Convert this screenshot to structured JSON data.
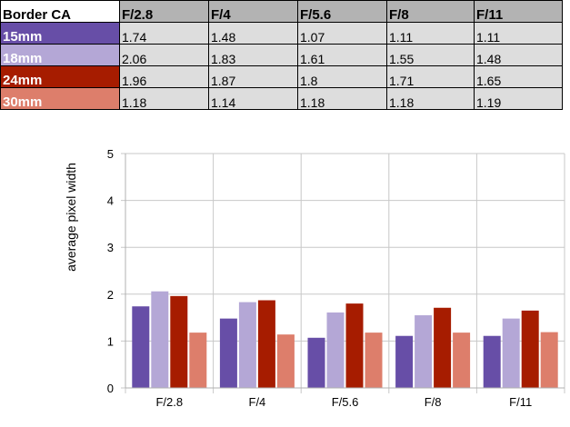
{
  "table": {
    "corner_label": "Border CA",
    "headers": [
      "F/2.8",
      "F/4",
      "F/5.6",
      "F/8",
      "F/11"
    ],
    "rows": [
      {
        "label": "15mm",
        "color": "#674ea7",
        "text_color": "#ffffff",
        "values": [
          "1.74",
          "1.48",
          "1.07",
          "1.11",
          "1.11"
        ]
      },
      {
        "label": "18mm",
        "color": "#b4a7d6",
        "text_color": "#ffffff",
        "values": [
          "2.06",
          "1.83",
          "1.61",
          "1.55",
          "1.48"
        ]
      },
      {
        "label": "24mm",
        "color": "#a61c00",
        "text_color": "#ffffff",
        "values": [
          "1.96",
          "1.87",
          "1.8",
          "1.71",
          "1.65"
        ]
      },
      {
        "label": "30mm",
        "color": "#dd7e6b",
        "text_color": "#ffffff",
        "values": [
          "1.18",
          "1.14",
          "1.18",
          "1.18",
          "1.19"
        ]
      }
    ]
  },
  "chart_data": {
    "type": "bar",
    "title": "",
    "xlabel": "",
    "ylabel": "average pixel width",
    "ylim": [
      0,
      5
    ],
    "yticks": [
      "0",
      "1",
      "2",
      "3",
      "4",
      "5"
    ],
    "categories": [
      "F/2.8",
      "F/4",
      "F/5.6",
      "F/8",
      "F/11"
    ],
    "grid": true,
    "legend": "none",
    "series": [
      {
        "color": "#674ea7",
        "values": [
          1.74,
          1.48,
          1.07,
          1.11,
          1.11
        ]
      },
      {
        "color": "#b4a7d6",
        "values": [
          2.06,
          1.83,
          1.61,
          1.55,
          1.48
        ]
      },
      {
        "color": "#a61c00",
        "values": [
          1.96,
          1.87,
          1.8,
          1.71,
          1.65
        ]
      },
      {
        "color": "#dd7e6b",
        "values": [
          1.18,
          1.14,
          1.18,
          1.18,
          1.19
        ]
      }
    ]
  }
}
